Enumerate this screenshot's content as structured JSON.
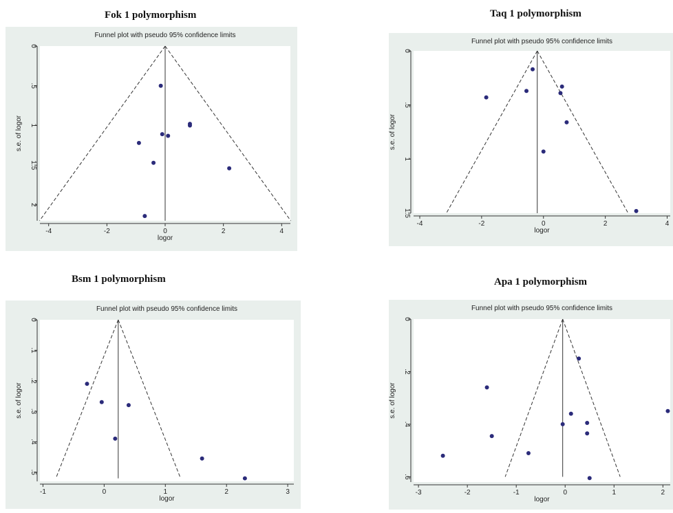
{
  "panels": [
    {
      "heading": "Fok 1 polymorphism"
    },
    {
      "heading": "Taq 1 polymorphism"
    },
    {
      "heading": "Bsm 1 polymorphism"
    },
    {
      "heading": "Apa 1 polymorphism"
    }
  ],
  "colors": {
    "panel_bg": "#e9efec",
    "plot_bg": "#ffffff",
    "marker": "#2b2b7a",
    "line": "#333333"
  },
  "chart_data": [
    {
      "type": "scatter",
      "title": "Funnel plot with pseudo 95% confidence limits",
      "xlabel": "logor",
      "ylabel": "s.e. of logor",
      "xlim": [
        -4.3,
        4.3
      ],
      "ylim": [
        0,
        2.2
      ],
      "y_reversed": true,
      "xticks": [
        -4,
        -2,
        0,
        2,
        4
      ],
      "xtick_labels": [
        "-4",
        "-2",
        "0",
        "2",
        "4"
      ],
      "yticks": [
        0,
        0.5,
        1,
        1.5,
        2
      ],
      "ytick_labels": [
        "0",
        ".5",
        "1",
        "1.5",
        "2"
      ],
      "pooled_logor": 0.0,
      "funnel_max_se": 2.2,
      "grid": false,
      "points": [
        {
          "x": -0.15,
          "y": 0.5
        },
        {
          "x": -0.9,
          "y": 1.22
        },
        {
          "x": -0.1,
          "y": 1.11
        },
        {
          "x": 0.1,
          "y": 1.13
        },
        {
          "x": 0.85,
          "y": 0.98
        },
        {
          "x": 0.85,
          "y": 1.0
        },
        {
          "x": -0.4,
          "y": 1.47
        },
        {
          "x": 2.2,
          "y": 1.54
        },
        {
          "x": -0.7,
          "y": 2.14
        }
      ]
    },
    {
      "type": "scatter",
      "title": "Funnel plot with pseudo 95% confidence limits",
      "xlabel": "logor",
      "ylabel": "s.e. of logor",
      "xlim": [
        -4.2,
        4.1
      ],
      "ylim": [
        0,
        1.5
      ],
      "y_reversed": true,
      "xticks": [
        -4,
        -2,
        0,
        2,
        4
      ],
      "xtick_labels": [
        "-4",
        "-2",
        "0",
        "2",
        "4"
      ],
      "yticks": [
        0,
        0.5,
        1,
        1.5
      ],
      "ytick_labels": [
        "0",
        ".5",
        "1",
        "1.5"
      ],
      "pooled_logor": -0.2,
      "funnel_max_se": 1.5,
      "grid": false,
      "points": [
        {
          "x": -0.35,
          "y": 0.17
        },
        {
          "x": -0.55,
          "y": 0.37
        },
        {
          "x": -1.85,
          "y": 0.43
        },
        {
          "x": 0.6,
          "y": 0.33
        },
        {
          "x": 0.55,
          "y": 0.39
        },
        {
          "x": 0.75,
          "y": 0.66
        },
        {
          "x": 0.0,
          "y": 0.93
        },
        {
          "x": 3.0,
          "y": 1.48
        }
      ]
    },
    {
      "type": "scatter",
      "title": "Funnel plot with pseudo 95% confidence limits",
      "xlabel": "logor",
      "ylabel": "s.e. of logor",
      "xlim": [
        -1.05,
        3.1
      ],
      "ylim": [
        0,
        0.53
      ],
      "y_reversed": true,
      "xticks": [
        -1,
        0,
        1,
        2,
        3
      ],
      "xtick_labels": [
        "-1",
        "0",
        "1",
        "2",
        "3"
      ],
      "yticks": [
        0,
        0.1,
        0.2,
        0.3,
        0.4,
        0.5
      ],
      "ytick_labels": [
        "0",
        ".1",
        ".2",
        ".3",
        ".4",
        ".5"
      ],
      "pooled_logor": 0.23,
      "funnel_max_se": 0.52,
      "grid": false,
      "points": [
        {
          "x": -0.28,
          "y": 0.21
        },
        {
          "x": -0.04,
          "y": 0.27
        },
        {
          "x": 0.4,
          "y": 0.28
        },
        {
          "x": 0.18,
          "y": 0.39
        },
        {
          "x": 1.6,
          "y": 0.455
        },
        {
          "x": 2.3,
          "y": 0.52
        }
      ]
    },
    {
      "type": "scatter",
      "title": "Funnel plot with pseudo 95% confidence limits",
      "xlabel": "logor",
      "ylabel": "s.e. of logor",
      "xlim": [
        -3.1,
        2.15
      ],
      "ylim": [
        0,
        0.62
      ],
      "y_reversed": true,
      "xticks": [
        -3,
        -2,
        -1,
        0,
        1,
        2
      ],
      "xtick_labels": [
        "-3",
        "-2",
        "-1",
        "0",
        "1",
        "2"
      ],
      "yticks": [
        0,
        0.2,
        0.4,
        0.6
      ],
      "ytick_labels": [
        "0",
        ".2",
        ".4",
        ".6"
      ],
      "pooled_logor": -0.05,
      "funnel_max_se": 0.6,
      "grid": false,
      "points": [
        {
          "x": 0.28,
          "y": 0.15
        },
        {
          "x": -1.6,
          "y": 0.26
        },
        {
          "x": 2.1,
          "y": 0.35
        },
        {
          "x": 0.12,
          "y": 0.36
        },
        {
          "x": -0.05,
          "y": 0.4
        },
        {
          "x": 0.45,
          "y": 0.395
        },
        {
          "x": 0.45,
          "y": 0.435
        },
        {
          "x": -1.5,
          "y": 0.445
        },
        {
          "x": -0.75,
          "y": 0.51
        },
        {
          "x": -2.5,
          "y": 0.52
        },
        {
          "x": 0.5,
          "y": 0.605
        }
      ]
    }
  ]
}
